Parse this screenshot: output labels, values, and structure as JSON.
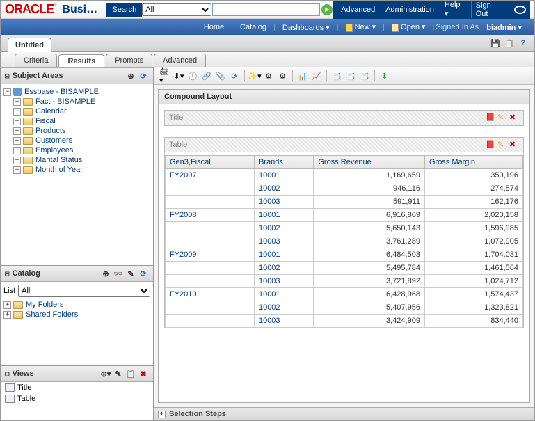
{
  "logo": "ORACLE",
  "brand": "Busin…",
  "search": {
    "label": "Search",
    "selected": "All",
    "placeholder": ""
  },
  "topLinks": [
    "Advanced",
    "Administration",
    "Help ",
    "Sign Out"
  ],
  "nav": {
    "home": "Home",
    "catalog": "Catalog",
    "dashboards": "Dashboards ",
    "new": "New ",
    "open": "Open ",
    "signed": "Signed In As",
    "user": "biadmin "
  },
  "untitled": "Untitled",
  "subtabs": [
    "Criteria",
    "Results",
    "Prompts",
    "Advanced"
  ],
  "activeTab": 1,
  "subjectAreas": {
    "title": "Subject Areas",
    "root": "Essbase - BISAMPLE",
    "children": [
      "Fact - BISAMPLE",
      "Calendar",
      "Fiscal",
      "Products",
      "Customers",
      "Employees",
      "Marital Status",
      "Month of Year"
    ]
  },
  "catalog": {
    "title": "Catalog",
    "listLabel": "List",
    "listValue": "All",
    "folders": [
      "My Folders",
      "Shared Folders"
    ]
  },
  "views": {
    "title": "Views",
    "items": [
      "Title",
      "Table"
    ]
  },
  "compound": {
    "title": "Compound Layout",
    "titleView": "Title",
    "tableView": "Table",
    "columns": [
      "Gen3,Fiscal",
      "Brands",
      "Gross Revenue",
      "Gross Margin"
    ],
    "rows": [
      {
        "fy": "FY2007",
        "b": "10001",
        "gr": "1,169,659",
        "gm": "350,196"
      },
      {
        "fy": "",
        "b": "10002",
        "gr": "946,116",
        "gm": "274,574"
      },
      {
        "fy": "",
        "b": "10003",
        "gr": "591,911",
        "gm": "162,176"
      },
      {
        "fy": "FY2008",
        "b": "10001",
        "gr": "6,916,869",
        "gm": "2,020,158"
      },
      {
        "fy": "",
        "b": "10002",
        "gr": "5,650,143",
        "gm": "1,596,985"
      },
      {
        "fy": "",
        "b": "10003",
        "gr": "3,761,289",
        "gm": "1,072,905"
      },
      {
        "fy": "FY2009",
        "b": "10001",
        "gr": "6,484,503",
        "gm": "1,704,031"
      },
      {
        "fy": "",
        "b": "10002",
        "gr": "5,495,784",
        "gm": "1,461,564"
      },
      {
        "fy": "",
        "b": "10003",
        "gr": "3,721,892",
        "gm": "1,024,712"
      },
      {
        "fy": "FY2010",
        "b": "10001",
        "gr": "6,428,968",
        "gm": "1,574,437"
      },
      {
        "fy": "",
        "b": "10002",
        "gr": "5,407,956",
        "gm": "1,323,821"
      },
      {
        "fy": "",
        "b": "10003",
        "gr": "3,424,909",
        "gm": "834,440"
      }
    ]
  },
  "selectionSteps": "Selection Steps"
}
